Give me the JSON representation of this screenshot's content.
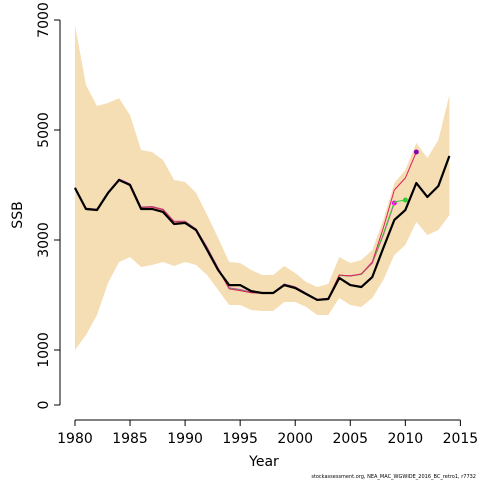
{
  "chart_data": {
    "type": "line",
    "xlabel": "Year",
    "ylabel": "SSB",
    "footnote": "stockassessment.org, NEA_MAC_WGWIDE_2016_BC_retro1, r7732",
    "x": [
      1980,
      1981,
      1982,
      1983,
      1984,
      1985,
      1986,
      1987,
      1988,
      1989,
      1990,
      1991,
      1992,
      1993,
      1994,
      1995,
      1996,
      1997,
      1998,
      1999,
      2000,
      2001,
      2002,
      2003,
      2004,
      2005,
      2006,
      2007,
      2008,
      2009,
      2010,
      2011,
      2012,
      2013,
      2014
    ],
    "xlim": [
      1978.64,
      2015.6
    ],
    "xticks": [
      1980,
      1985,
      1990,
      1995,
      2000,
      2005,
      2010,
      2015
    ],
    "ylim": [
      -273,
      7182
    ],
    "yticks": [
      0,
      1000,
      3000,
      5000,
      7000
    ],
    "band": {
      "color": "#f5deb3",
      "upper": [
        6909,
        5818,
        5436,
        5490,
        5580,
        5273,
        4636,
        4600,
        4455,
        4090,
        4055,
        3855,
        3455,
        3036,
        2600,
        2582,
        2455,
        2364,
        2364,
        2527,
        2400,
        2236,
        2145,
        2200,
        2690,
        2582,
        2636,
        2818,
        3364,
        4036,
        4273,
        4764,
        4491,
        4818,
        5636
      ],
      "lower": [
        1000,
        1273,
        1636,
        2218,
        2600,
        2690,
        2509,
        2545,
        2600,
        2527,
        2600,
        2545,
        2364,
        2090,
        1818,
        1818,
        1727,
        1709,
        1709,
        1873,
        1873,
        1782,
        1636,
        1636,
        1945,
        1818,
        1782,
        1945,
        2273,
        2727,
        2909,
        3327,
        3091,
        3182,
        3455
      ]
    },
    "series": [
      {
        "color": "#ff00ff",
        "marker": true,
        "values": [
          3960,
          3580,
          3560,
          3870,
          4110,
          4020,
          3600,
          3610,
          3560,
          3340,
          3340,
          3200,
          2870,
          2490,
          2130,
          2100,
          2050,
          2040,
          2040,
          2200,
          2150,
          2030,
          1920,
          1940,
          2360,
          2350,
          2380,
          2580,
          3090,
          3673,
          null,
          null,
          null,
          null,
          null
        ]
      },
      {
        "color": "#33cc33",
        "marker": true,
        "values": [
          3955,
          3575,
          3555,
          3865,
          4105,
          4015,
          3595,
          3605,
          3555,
          3335,
          3335,
          3195,
          2860,
          2480,
          2120,
          2090,
          2045,
          2035,
          2035,
          2195,
          2145,
          2025,
          1915,
          1935,
          2355,
          2345,
          2375,
          2590,
          3110,
          3690,
          3727,
          null,
          null,
          null,
          null
        ]
      },
      {
        "color": "#e0205a",
        "marker": true,
        "marker_color": "#8a00b0",
        "values": [
          3950,
          3570,
          3550,
          3860,
          4100,
          4010,
          3590,
          3600,
          3550,
          3330,
          3330,
          3190,
          2850,
          2470,
          2110,
          2080,
          2040,
          2030,
          2030,
          2190,
          2140,
          2020,
          1910,
          1930,
          2364,
          2345,
          2382,
          2600,
          3218,
          3909,
          4127,
          4600,
          null,
          null,
          null
        ]
      },
      {
        "color": "#000000",
        "width": 2.2,
        "values": [
          3945,
          3564,
          3545,
          3855,
          4090,
          4000,
          3564,
          3564,
          3510,
          3290,
          3310,
          3180,
          2820,
          2455,
          2180,
          2180,
          2070,
          2036,
          2036,
          2180,
          2127,
          2018,
          1910,
          1927,
          2310,
          2180,
          2145,
          2327,
          2855,
          3364,
          3545,
          4036,
          3782,
          3982,
          4527
        ]
      }
    ]
  }
}
